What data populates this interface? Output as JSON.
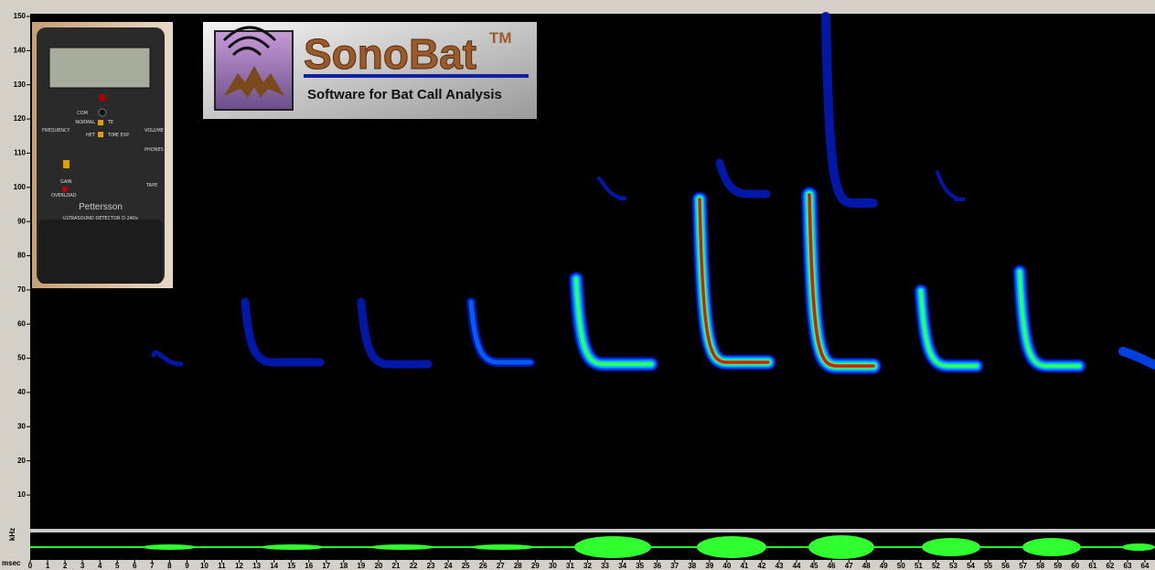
{
  "spectrogram": {
    "y_unit": "kHz",
    "ylim": [
      0,
      150
    ],
    "yticks": [
      10,
      20,
      30,
      40,
      50,
      60,
      70,
      80,
      90,
      100,
      110,
      120,
      130,
      140,
      150
    ],
    "x_unit": "msec",
    "xlim": [
      0,
      64
    ],
    "xticks": [
      0,
      1,
      2,
      3,
      4,
      5,
      6,
      7,
      8,
      9,
      10,
      11,
      12,
      13,
      14,
      15,
      16,
      17,
      18,
      19,
      20,
      21,
      22,
      23,
      24,
      25,
      26,
      27,
      28,
      29,
      30,
      31,
      32,
      33,
      34,
      35,
      36,
      37,
      38,
      39,
      40,
      41,
      42,
      43,
      44,
      45,
      46,
      47,
      48,
      49,
      50,
      51,
      52,
      53,
      54,
      55,
      56,
      57,
      58,
      59,
      60,
      61,
      62,
      63,
      64
    ]
  },
  "logo": {
    "name": "SonoBat",
    "trademark": "TM",
    "tagline": "Software for Bat Call Analysis"
  },
  "device": {
    "brand": "Pettersson",
    "model": "ULTRASOUND DETECTOR D 240x",
    "com": "COM",
    "normal": "NORMAL",
    "te": "TE",
    "het": "HET",
    "time_exp": "TIME EXP",
    "frequency": "FREQUENCY",
    "volume": "VOLUME",
    "phones": "PHONES",
    "tape": "TAPE",
    "gain": "GAIN",
    "overload": "OVERLOAD"
  }
}
